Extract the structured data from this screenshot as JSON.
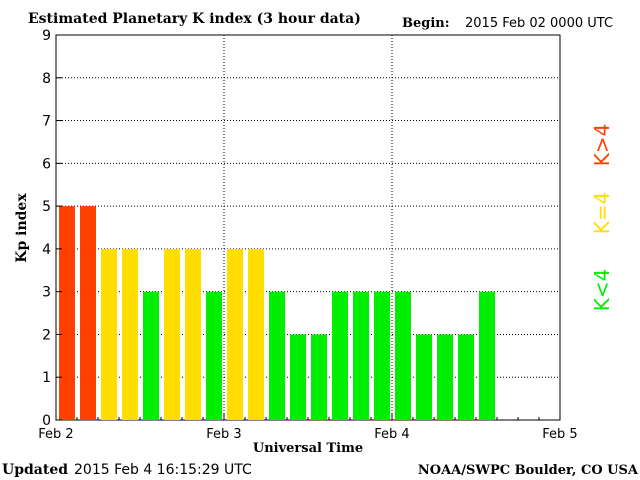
{
  "header": {
    "title": "Estimated Planetary K index (3 hour data)",
    "begin_label": "Begin:",
    "begin_value": "2015 Feb 02 0000 UTC"
  },
  "footer": {
    "updated_label": "Updated",
    "updated_value": "2015 Feb  4 16:15:29 UTC",
    "source": "NOAA/SWPC Boulder, CO USA"
  },
  "legend": {
    "high": "K>4",
    "mid": "K=4",
    "low": "K<4"
  },
  "colors": {
    "high": "#ff4000",
    "mid": "#ffdd00",
    "low": "#00ee00",
    "grid": "#000000"
  },
  "chart_data": {
    "type": "bar",
    "xlabel": "Universal Time",
    "ylabel": "Kp index",
    "ylim": [
      0,
      9
    ],
    "yticks": [
      "0",
      "1",
      "2",
      "3",
      "4",
      "5",
      "6",
      "7",
      "8",
      "9"
    ],
    "xticks": [
      "Feb 2",
      "Feb 3",
      "Feb 4",
      "Feb 5"
    ],
    "values": [
      5,
      5,
      4,
      4,
      3,
      4,
      4,
      3,
      4,
      4,
      3,
      2,
      2,
      3,
      3,
      3,
      3,
      2,
      2,
      2,
      3
    ],
    "grid": true
  }
}
